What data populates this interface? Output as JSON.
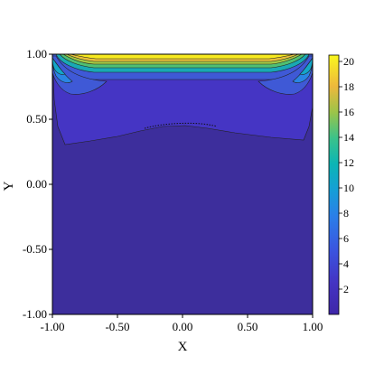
{
  "chart_data": {
    "type": "heatmap",
    "plot_kind": "filled-contour",
    "xlabel": "X",
    "ylabel": "Y",
    "xlim": [
      -1.0,
      1.0
    ],
    "ylim": [
      -1.0,
      1.0
    ],
    "x_ticks": [
      "-1.00",
      "-0.50",
      "0.00",
      "0.50",
      "1.00"
    ],
    "y_ticks": [
      "-1.00",
      "-0.50",
      "0.00",
      "0.50",
      "1.00"
    ],
    "colorbar": {
      "range": [
        0,
        20.5
      ],
      "ticks": [
        "2",
        "4",
        "6",
        "8",
        "10",
        "12",
        "14",
        "16",
        "18",
        "20"
      ],
      "colormap": "viridis-like"
    },
    "contour_levels": [
      1.2,
      2.5,
      4,
      6,
      8,
      10,
      12,
      14,
      16,
      18,
      20
    ],
    "field_description_values": {
      "lid_peak_value": 20.5,
      "bulk_value": 0.5,
      "mid_layer_value": 1.5
    },
    "grid": false,
    "legend": "colorbar-right",
    "colors": {
      "background_level": "#3d2e9c",
      "low": "#4633b8",
      "teal": "#1ea7b0",
      "green": "#55c46a",
      "yellow": "#f9ea1c"
    }
  }
}
